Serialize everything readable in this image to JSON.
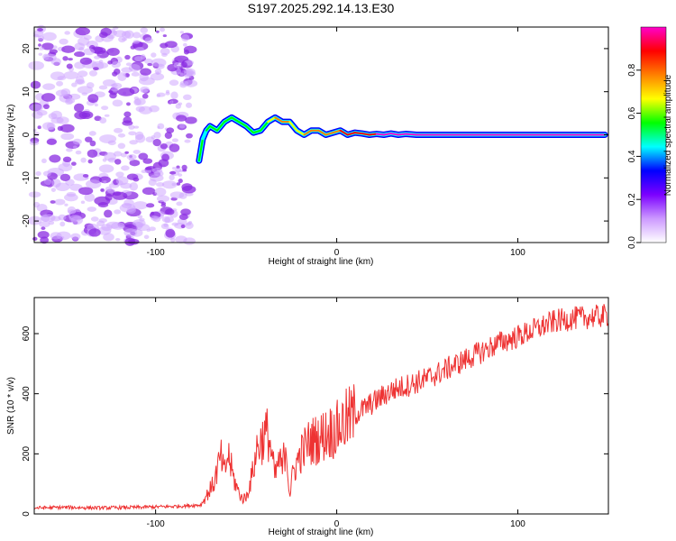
{
  "title": "S197.2025.292.14.13.E30",
  "chart_data": [
    {
      "type": "heatmap",
      "xlabel": "Height of straight line (km)",
      "ylabel": "Frequency (Hz)",
      "xlim": [
        -167,
        150
      ],
      "ylim": [
        -25,
        25
      ],
      "xticks": [
        -100,
        0,
        100
      ],
      "yticks": [
        -20,
        -10,
        0,
        10,
        20
      ],
      "colorbar": {
        "label": "Normalized spectral amplitude",
        "range": [
          0,
          1
        ],
        "ticks": [
          "0.0",
          "0.2",
          "0.4",
          "0.6",
          "0.8"
        ],
        "colors": [
          "#ffffff",
          "#cc99ff",
          "#7b00ff",
          "#0000ff",
          "#00ffff",
          "#00ff00",
          "#ffff00",
          "#ff8000",
          "#ff0000",
          "#ff00cc"
        ]
      },
      "noise_region_x": [
        -167,
        -80
      ],
      "ridge": {
        "x": [
          -76,
          -74,
          -72,
          -70,
          -66,
          -62,
          -58,
          -54,
          -50,
          -46,
          -42,
          -38,
          -34,
          -30,
          -26,
          -22,
          -18,
          -14,
          -10,
          -6,
          -2,
          2,
          6,
          10,
          14,
          18,
          22,
          26,
          30,
          34,
          38,
          44,
          60,
          80,
          100,
          120,
          140,
          148
        ],
        "freq": [
          -6,
          -1,
          1,
          2,
          1,
          3,
          4,
          3,
          2,
          0.5,
          1,
          3,
          4,
          3,
          3,
          1,
          0,
          1,
          1,
          0,
          0.5,
          1,
          0,
          0.5,
          0.3,
          0,
          0.2,
          0,
          0.3,
          0,
          0.2,
          0,
          0,
          0,
          0,
          0,
          0,
          0
        ],
        "amplitude": [
          0.5,
          0.45,
          0.5,
          0.55,
          0.5,
          0.6,
          0.6,
          0.55,
          0.5,
          0.5,
          0.55,
          0.7,
          0.8,
          0.75,
          0.7,
          0.7,
          0.75,
          0.8,
          0.8,
          0.75,
          0.8,
          0.85,
          0.85,
          0.9,
          0.9,
          0.9,
          0.95,
          0.95,
          0.95,
          0.95,
          0.95,
          0.95,
          0.95,
          0.95,
          0.95,
          0.95,
          0.95,
          0.95
        ]
      }
    },
    {
      "type": "line",
      "xlabel": "Height of straight line (km)",
      "ylabel": "SNR (10 * v/v)",
      "xlim": [
        -167,
        150
      ],
      "ylim": [
        0,
        720
      ],
      "xticks": [
        -100,
        0,
        100
      ],
      "yticks": [
        0,
        200,
        400,
        600
      ],
      "color": "#ee3333",
      "series": [
        {
          "name": "SNR",
          "x": [
            -167,
            -150,
            -130,
            -110,
            -90,
            -75,
            -68,
            -64,
            -62,
            -60,
            -57,
            -54,
            -52,
            -50,
            -47,
            -44,
            -41,
            -38,
            -36,
            -34,
            -32,
            -30,
            -28,
            -26,
            -24,
            -20,
            -15,
            -10,
            -5,
            0,
            5,
            10,
            15,
            20,
            30,
            40,
            50,
            60,
            70,
            80,
            90,
            100,
            110,
            120,
            130,
            140,
            150
          ],
          "y": [
            20,
            22,
            20,
            22,
            25,
            30,
            100,
            190,
            130,
            200,
            120,
            70,
            50,
            55,
            120,
            220,
            250,
            270,
            200,
            120,
            180,
            150,
            240,
            60,
            140,
            200,
            240,
            250,
            270,
            280,
            310,
            330,
            350,
            370,
            410,
            430,
            450,
            480,
            510,
            540,
            570,
            590,
            615,
            640,
            650,
            655,
            660
          ]
        }
      ]
    }
  ]
}
